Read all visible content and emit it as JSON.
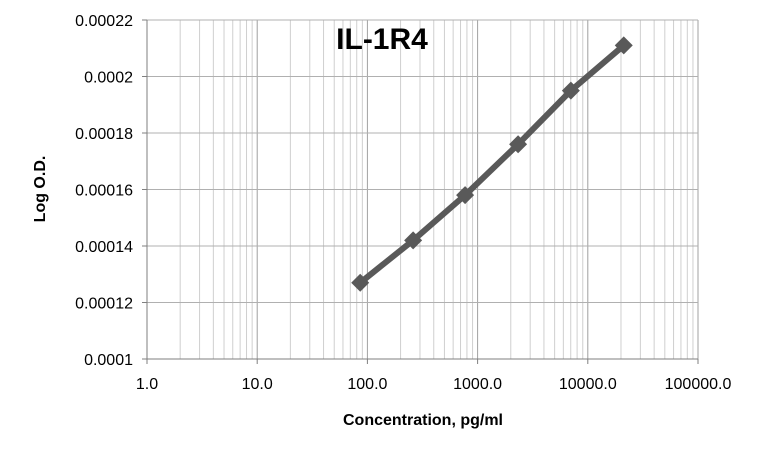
{
  "chart_data": {
    "type": "line",
    "title": "IL-1R4",
    "xlabel": "Concentration, pg/ml",
    "ylabel": "Log O.D.",
    "x_scale": "log",
    "xlim": [
      1,
      100000
    ],
    "ylim": [
      0.0001,
      0.00022
    ],
    "x_tick_labels": [
      "1.0",
      "10.0",
      "100.0",
      "1000.0",
      "10000.0",
      "100000.0"
    ],
    "y_tick_labels": [
      "0.0001",
      "0.00012",
      "0.00014",
      "0.00016",
      "0.00018",
      "0.0002",
      "0.00022"
    ],
    "grid": true,
    "series": [
      {
        "color": "#595959",
        "marker": "diamond",
        "points": [
          {
            "x": 86,
            "y": 0.000127
          },
          {
            "x": 260,
            "y": 0.000142
          },
          {
            "x": 770,
            "y": 0.000158
          },
          {
            "x": 2330,
            "y": 0.000176
          },
          {
            "x": 7020,
            "y": 0.000195
          },
          {
            "x": 21200,
            "y": 0.000211
          }
        ]
      }
    ]
  }
}
